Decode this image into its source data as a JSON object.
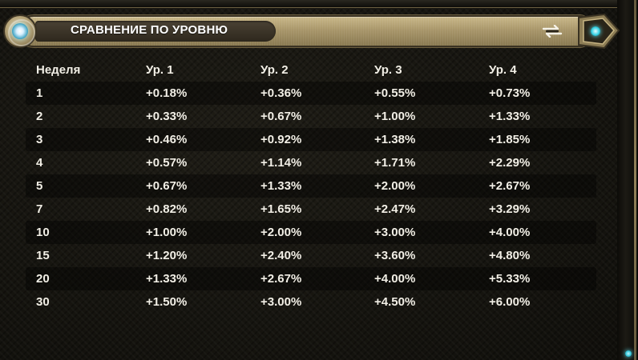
{
  "header": {
    "title": "СРАВНЕНИЕ ПО УРОВНЮ",
    "emblem_icon": "glowing-orb-emblem",
    "collapse_icon": "collapse-arrows-icon"
  },
  "table": {
    "columns": [
      "Неделя",
      "Ур. 1",
      "Ур. 2",
      "Ур. 3",
      "Ур. 4"
    ],
    "rows": [
      [
        "1",
        "+0.18%",
        "+0.36%",
        "+0.55%",
        "+0.73%"
      ],
      [
        "2",
        "+0.33%",
        "+0.67%",
        "+1.00%",
        "+1.33%"
      ],
      [
        "3",
        "+0.46%",
        "+0.92%",
        "+1.38%",
        "+1.85%"
      ],
      [
        "4",
        "+0.57%",
        "+1.14%",
        "+1.71%",
        "+2.29%"
      ],
      [
        "5",
        "+0.67%",
        "+1.33%",
        "+2.00%",
        "+2.67%"
      ],
      [
        "7",
        "+0.82%",
        "+1.65%",
        "+2.47%",
        "+3.29%"
      ],
      [
        "10",
        "+1.00%",
        "+2.00%",
        "+3.00%",
        "+4.00%"
      ],
      [
        "15",
        "+1.20%",
        "+2.40%",
        "+3.60%",
        "+4.80%"
      ],
      [
        "20",
        "+1.33%",
        "+2.67%",
        "+4.00%",
        "+5.33%"
      ],
      [
        "30",
        "+1.50%",
        "+3.00%",
        "+4.50%",
        "+6.00%"
      ]
    ]
  },
  "colors": {
    "text": "#f2efe6",
    "background": "#15140f",
    "header_gold": "#b09d6e",
    "accent_cyan": "#38d2e4"
  }
}
